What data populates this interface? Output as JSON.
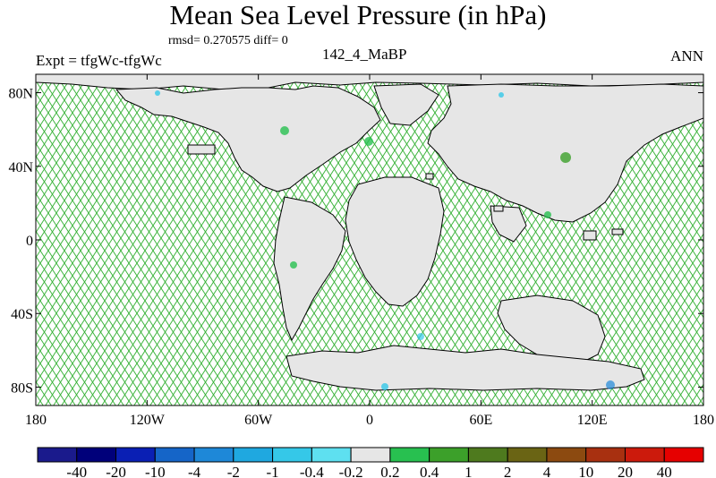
{
  "title": "Mean Sea Level Pressure (in hPa)",
  "subtitle_left": "Expt = tfgWc-tfgWc",
  "subtitle_stats": "rmsd= 0.270575 diff= 0",
  "subtitle_center": "142_4_MaBP",
  "subtitle_right": "ANN",
  "map": {
    "lon_ticks": [
      "180",
      "120W",
      "60W",
      "0",
      "60E",
      "120E",
      "180"
    ],
    "lat_ticks": [
      "80N",
      "40N",
      "0",
      "40S",
      "80S"
    ],
    "hatch_color": "#3cb43c",
    "land_color": "#e6e6e6",
    "coast_color": "#000000"
  },
  "colorbar": {
    "labels": [
      "-40",
      "-20",
      "-10",
      "-4",
      "-2",
      "-1",
      "-0.4",
      "-0.2",
      "0.2",
      "0.4",
      "1",
      "2",
      "4",
      "10",
      "20",
      "40"
    ],
    "colors": [
      "#1a1a8c",
      "#00007a",
      "#0a1fb4",
      "#1565c8",
      "#1e88d8",
      "#1fa8e0",
      "#35c8e8",
      "#5ee0f0",
      "#e6e6e6",
      "#28c050",
      "#3ca02a",
      "#4e7a1e",
      "#6a6414",
      "#8c4a10",
      "#a83010",
      "#cc1a0c",
      "#e60000"
    ]
  }
}
